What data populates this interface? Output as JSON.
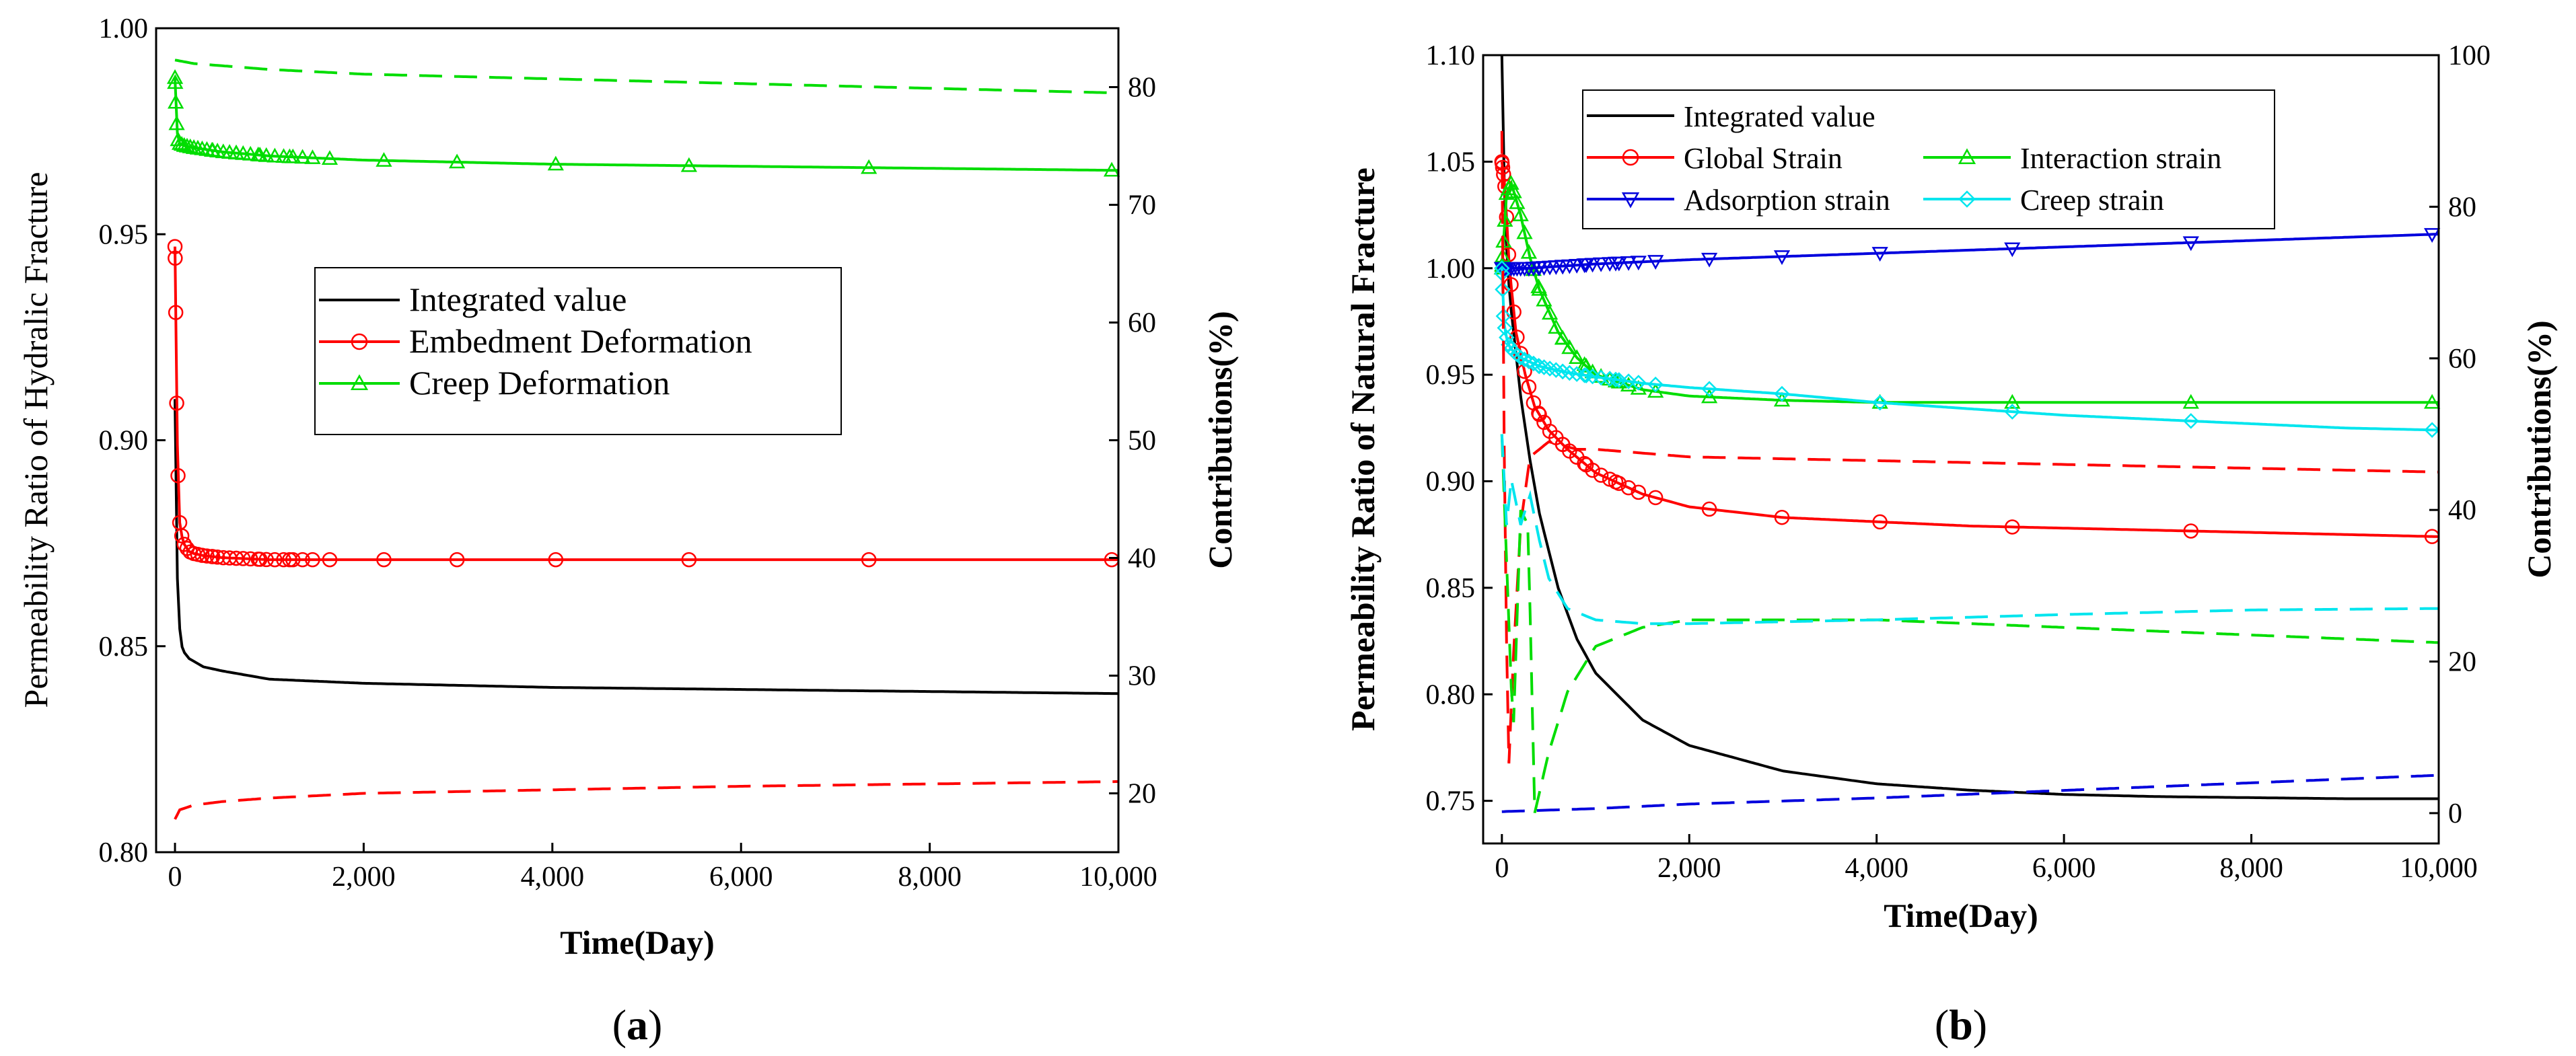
{
  "chart_data": [
    {
      "type": "line",
      "panel": "a",
      "caption_open": "(",
      "caption_letter": "a",
      "caption_close": ")",
      "xlabel": "Time(Day)",
      "ylabel": "Permeability Ratio of Hydralic Fracture",
      "y2label": "Contributions(%)",
      "xlim": [
        -200,
        10000
      ],
      "ylim": [
        0.8,
        1.0
      ],
      "y2lim": [
        15,
        85
      ],
      "x_ticks": [
        0,
        2000,
        4000,
        6000,
        8000,
        10000
      ],
      "x_tick_labels": [
        "0",
        "2,000",
        "4,000",
        "6,000",
        "8,000",
        "10,000"
      ],
      "y_ticks": [
        0.8,
        0.85,
        0.9,
        0.95,
        1.0
      ],
      "y_tick_labels": [
        "0.80",
        "0.85",
        "0.90",
        "0.95",
        "1.00"
      ],
      "y2_ticks": [
        20,
        30,
        40,
        50,
        60,
        70,
        80
      ],
      "y2_tick_labels": [
        "20",
        "30",
        "40",
        "50",
        "60",
        "70",
        "80"
      ],
      "legend": [
        {
          "label": "Integrated value",
          "color": "#000000",
          "marker": "none"
        },
        {
          "label": "Embedment Deformation",
          "color": "#ff0000",
          "marker": "circle"
        },
        {
          "label": "Creep Deformation",
          "color": "#00dd00",
          "marker": "triangle-up"
        }
      ],
      "series": [
        {
          "name": "Integrated value",
          "axis": "left",
          "style": "solid",
          "color": "#000000",
          "marker": "none",
          "x": [
            0,
            20,
            40,
            80,
            150,
            300,
            500,
            1000,
            2000,
            4000,
            6000,
            8000,
            10000
          ],
          "y": [
            0.91,
            0.87,
            0.856,
            0.849,
            0.847,
            0.845,
            0.844,
            0.842,
            0.841,
            0.84,
            0.8395,
            0.839,
            0.8385
          ]
        },
        {
          "name": "Embedment Deformation",
          "axis": "left",
          "style": "solid",
          "color": "#ff0000",
          "marker": "circle",
          "x": [
            0,
            5,
            10,
            20,
            30,
            40,
            50,
            70,
            90,
            120,
            150,
            200,
            300,
            500,
            1000,
            2000,
            4000,
            6000,
            8000,
            10000
          ],
          "y": [
            0.947,
            0.94,
            0.925,
            0.905,
            0.893,
            0.885,
            0.88,
            0.877,
            0.875,
            0.874,
            0.873,
            0.8725,
            0.872,
            0.8715,
            0.871,
            0.871,
            0.871,
            0.871,
            0.871,
            0.871
          ]
        },
        {
          "name": "Creep Deformation",
          "axis": "left",
          "style": "solid",
          "color": "#00dd00",
          "marker": "triangle-up",
          "x": [
            0,
            5,
            10,
            20,
            30,
            50,
            100,
            200,
            500,
            1000,
            2000,
            4000,
            6000,
            8000,
            10000
          ],
          "y": [
            0.988,
            0.985,
            0.98,
            0.976,
            0.973,
            0.972,
            0.9715,
            0.971,
            0.97,
            0.969,
            0.968,
            0.967,
            0.9665,
            0.966,
            0.9655
          ]
        },
        {
          "name": "Embedment contribution (%)",
          "axis": "right",
          "style": "dashed",
          "color": "#ff0000",
          "marker": "none",
          "x": [
            0,
            50,
            200,
            500,
            1000,
            2000,
            4000,
            6000,
            8000,
            10000
          ],
          "y": [
            17.8,
            18.6,
            19.0,
            19.3,
            19.6,
            20.0,
            20.3,
            20.6,
            20.8,
            21.0
          ]
        },
        {
          "name": "Creep contribution (%)",
          "axis": "right",
          "style": "dashed",
          "color": "#00dd00",
          "marker": "none",
          "x": [
            0,
            200,
            1000,
            2000,
            4000,
            6000,
            8000,
            10000
          ],
          "y": [
            82.3,
            82.0,
            81.5,
            81.1,
            80.7,
            80.3,
            79.9,
            79.5
          ]
        }
      ]
    },
    {
      "type": "line",
      "panel": "b",
      "caption_open": "(",
      "caption_letter": "b",
      "caption_close": ")",
      "xlabel": "Time(Day)",
      "ylabel": "Permeability Ratio of Natural Fracture",
      "y2label": "Contributions(%)",
      "xlim": [
        -200,
        10000
      ],
      "ylim": [
        0.73,
        1.1
      ],
      "y2lim": [
        -4,
        100
      ],
      "x_ticks": [
        0,
        2000,
        4000,
        6000,
        8000,
        10000
      ],
      "x_tick_labels": [
        "0",
        "2,000",
        "4,000",
        "6,000",
        "8,000",
        "10,000"
      ],
      "y_ticks": [
        0.75,
        0.8,
        0.85,
        0.9,
        0.95,
        1.0,
        1.05,
        1.1
      ],
      "y_tick_labels": [
        "0.75",
        "0.80",
        "0.85",
        "0.90",
        "0.95",
        "1.00",
        "1.05",
        "1.10"
      ],
      "y2_ticks": [
        0,
        20,
        40,
        60,
        80,
        100
      ],
      "y2_tick_labels": [
        "0",
        "20",
        "40",
        "60",
        "80",
        "100"
      ],
      "legend": [
        {
          "label": "Integrated value",
          "color": "#000000",
          "marker": "none"
        },
        {
          "label": "Global Strain",
          "color": "#ff0000",
          "marker": "circle"
        },
        {
          "label": "Interaction strain",
          "color": "#00dd00",
          "marker": "triangle-up"
        },
        {
          "label": "Adsorption strain",
          "color": "#0000dd",
          "marker": "triangle-down"
        },
        {
          "label": "Creep strain",
          "color": "#00e5ee",
          "marker": "diamond"
        }
      ],
      "series": [
        {
          "name": "Integrated value",
          "axis": "left",
          "style": "solid",
          "color": "#000000",
          "marker": "none",
          "x": [
            0,
            30,
            60,
            100,
            200,
            300,
            400,
            600,
            800,
            1000,
            1500,
            2000,
            3000,
            4000,
            5000,
            6000,
            7000,
            8000,
            9000,
            10000
          ],
          "y": [
            1.1,
            1.03,
            1.0,
            0.98,
            0.94,
            0.91,
            0.885,
            0.85,
            0.826,
            0.81,
            0.788,
            0.776,
            0.764,
            0.758,
            0.755,
            0.753,
            0.752,
            0.7515,
            0.751,
            0.751
          ]
        },
        {
          "name": "Global Strain",
          "axis": "left",
          "style": "solid",
          "color": "#ff0000",
          "marker": "circle",
          "x": [
            0,
            30,
            80,
            150,
            250,
            350,
            500,
            700,
            1000,
            1500,
            2000,
            3000,
            4000,
            5000,
            6000,
            7000,
            8000,
            9000,
            10000
          ],
          "y": [
            1.05,
            1.04,
            1.0,
            0.97,
            0.95,
            0.935,
            0.924,
            0.915,
            0.904,
            0.894,
            0.888,
            0.883,
            0.881,
            0.879,
            0.878,
            0.877,
            0.876,
            0.875,
            0.874
          ]
        },
        {
          "name": "Interaction strain",
          "axis": "left",
          "style": "solid",
          "color": "#00dd00",
          "marker": "triangle-up",
          "x": [
            0,
            50,
            100,
            200,
            300,
            400,
            600,
            800,
            1000,
            1500,
            2000,
            3000,
            4000,
            6000,
            8000,
            10000
          ],
          "y": [
            1.0,
            1.035,
            1.04,
            1.025,
            1.005,
            0.99,
            0.97,
            0.958,
            0.95,
            0.943,
            0.94,
            0.938,
            0.937,
            0.937,
            0.937,
            0.937
          ]
        },
        {
          "name": "Adsorption strain",
          "axis": "left",
          "style": "solid",
          "color": "#0000dd",
          "marker": "triangle-down",
          "x": [
            0,
            100,
            300,
            1000,
            2000,
            4000,
            6000,
            8000,
            10000
          ],
          "y": [
            1.0,
            1.0,
            1.0,
            1.002,
            1.004,
            1.007,
            1.01,
            1.013,
            1.016
          ]
        },
        {
          "name": "Creep strain",
          "axis": "left",
          "style": "solid",
          "color": "#00e5ee",
          "marker": "diamond",
          "x": [
            0,
            20,
            60,
            100,
            200,
            400,
            700,
            1000,
            1500,
            2000,
            3000,
            4000,
            5000,
            6000,
            7000,
            8000,
            9000,
            10000
          ],
          "y": [
            1.0,
            0.975,
            0.965,
            0.962,
            0.958,
            0.954,
            0.951,
            0.949,
            0.946,
            0.944,
            0.941,
            0.937,
            0.934,
            0.931,
            0.929,
            0.927,
            0.925,
            0.924
          ]
        },
        {
          "name": "Global contribution (%)",
          "axis": "right",
          "style": "dashed",
          "color": "#ff0000",
          "marker": "none",
          "x": [
            0,
            30,
            70,
            120,
            200,
            300,
            500,
            800,
            1000,
            2000,
            4000,
            6000,
            8000,
            10000
          ],
          "y": [
            90,
            40,
            5,
            20,
            38,
            47,
            49,
            48,
            48,
            47,
            46.5,
            46,
            45.5,
            45
          ]
        },
        {
          "name": "Interaction contribution (%)",
          "axis": "right",
          "style": "dashed",
          "color": "#00dd00",
          "marker": "none",
          "x": [
            0,
            60,
            120,
            200,
            280,
            350,
            500,
            700,
            1000,
            1500,
            2000,
            4000,
            6000,
            8000,
            10000
          ],
          "y": [
            50,
            30,
            10,
            40,
            38,
            0,
            8,
            16,
            22,
            24.5,
            25.5,
            25.5,
            24.5,
            23.5,
            22.5
          ]
        },
        {
          "name": "Adsorption contribution (%)",
          "axis": "right",
          "style": "dashed",
          "color": "#0000dd",
          "marker": "none",
          "x": [
            0,
            1000,
            2000,
            4000,
            6000,
            8000,
            10000
          ],
          "y": [
            0.2,
            0.6,
            1.2,
            2.0,
            3.0,
            4.0,
            5.0
          ]
        },
        {
          "name": "Creep contribution (%)",
          "axis": "right",
          "style": "dashed",
          "color": "#00e5ee",
          "marker": "none",
          "x": [
            0,
            50,
            100,
            200,
            300,
            400,
            500,
            700,
            1000,
            1500,
            2000,
            4000,
            6000,
            8000,
            10000
          ],
          "y": [
            50,
            38,
            44,
            38,
            42,
            36,
            31,
            27,
            25.5,
            25,
            25,
            25.5,
            26.2,
            26.8,
            27
          ]
        }
      ]
    }
  ]
}
